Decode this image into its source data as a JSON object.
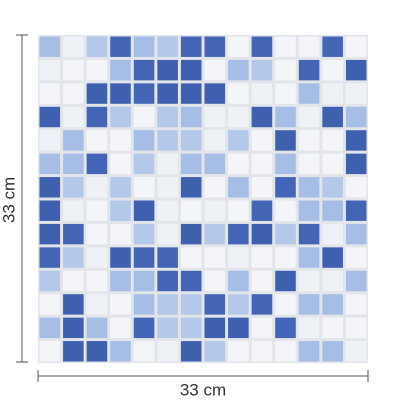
{
  "dimensions": {
    "height_label": "33 cm",
    "width_label": "33 cm"
  }
}
